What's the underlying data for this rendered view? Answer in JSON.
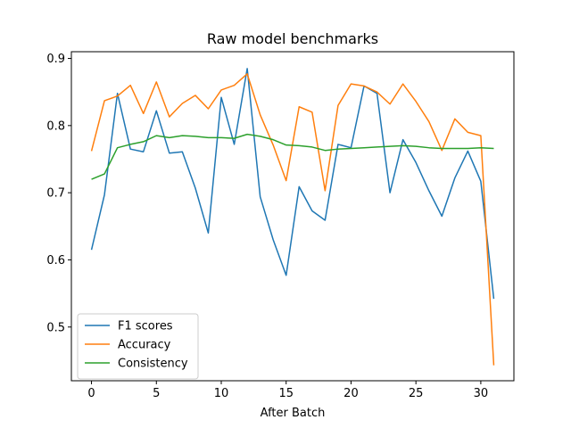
{
  "chart_data": {
    "type": "line",
    "title": "Raw model benchmarks",
    "xlabel": "After Batch",
    "ylabel": "",
    "xlim": [
      -1.55,
      32.55
    ],
    "ylim": [
      0.42,
      0.91
    ],
    "xticks": [
      0,
      5,
      10,
      15,
      20,
      25,
      30
    ],
    "yticks": [
      0.5,
      0.6,
      0.7,
      0.8,
      0.9
    ],
    "grid": false,
    "legend_position": "lower-left",
    "x": [
      0,
      1,
      2,
      3,
      4,
      5,
      6,
      7,
      8,
      9,
      10,
      11,
      12,
      13,
      14,
      15,
      16,
      17,
      18,
      19,
      20,
      21,
      22,
      23,
      24,
      25,
      26,
      27,
      28,
      29,
      30,
      31
    ],
    "series": [
      {
        "name": "F1 scores",
        "color": "#1f77b4",
        "values": [
          0.615,
          0.697,
          0.848,
          0.765,
          0.761,
          0.822,
          0.759,
          0.761,
          0.707,
          0.64,
          0.842,
          0.772,
          0.885,
          0.694,
          0.63,
          0.577,
          0.709,
          0.673,
          0.659,
          0.772,
          0.767,
          0.859,
          0.848,
          0.7,
          0.779,
          0.745,
          0.703,
          0.665,
          0.722,
          0.762,
          0.717,
          0.542
        ]
      },
      {
        "name": "Accuracy",
        "color": "#ff7f0e",
        "values": [
          0.762,
          0.837,
          0.844,
          0.86,
          0.818,
          0.865,
          0.813,
          0.833,
          0.845,
          0.825,
          0.853,
          0.86,
          0.877,
          0.816,
          0.771,
          0.718,
          0.828,
          0.82,
          0.703,
          0.83,
          0.862,
          0.859,
          0.85,
          0.832,
          0.862,
          0.836,
          0.806,
          0.763,
          0.81,
          0.79,
          0.785,
          0.443
        ]
      },
      {
        "name": "Consistency",
        "color": "#2ca02c",
        "values": [
          0.72,
          0.728,
          0.767,
          0.772,
          0.776,
          0.785,
          0.782,
          0.785,
          0.784,
          0.782,
          0.782,
          0.781,
          0.787,
          0.784,
          0.779,
          0.771,
          0.77,
          0.768,
          0.763,
          0.765,
          0.766,
          0.767,
          0.768,
          0.769,
          0.77,
          0.769,
          0.767,
          0.766,
          0.766,
          0.766,
          0.767,
          0.766
        ]
      }
    ]
  }
}
